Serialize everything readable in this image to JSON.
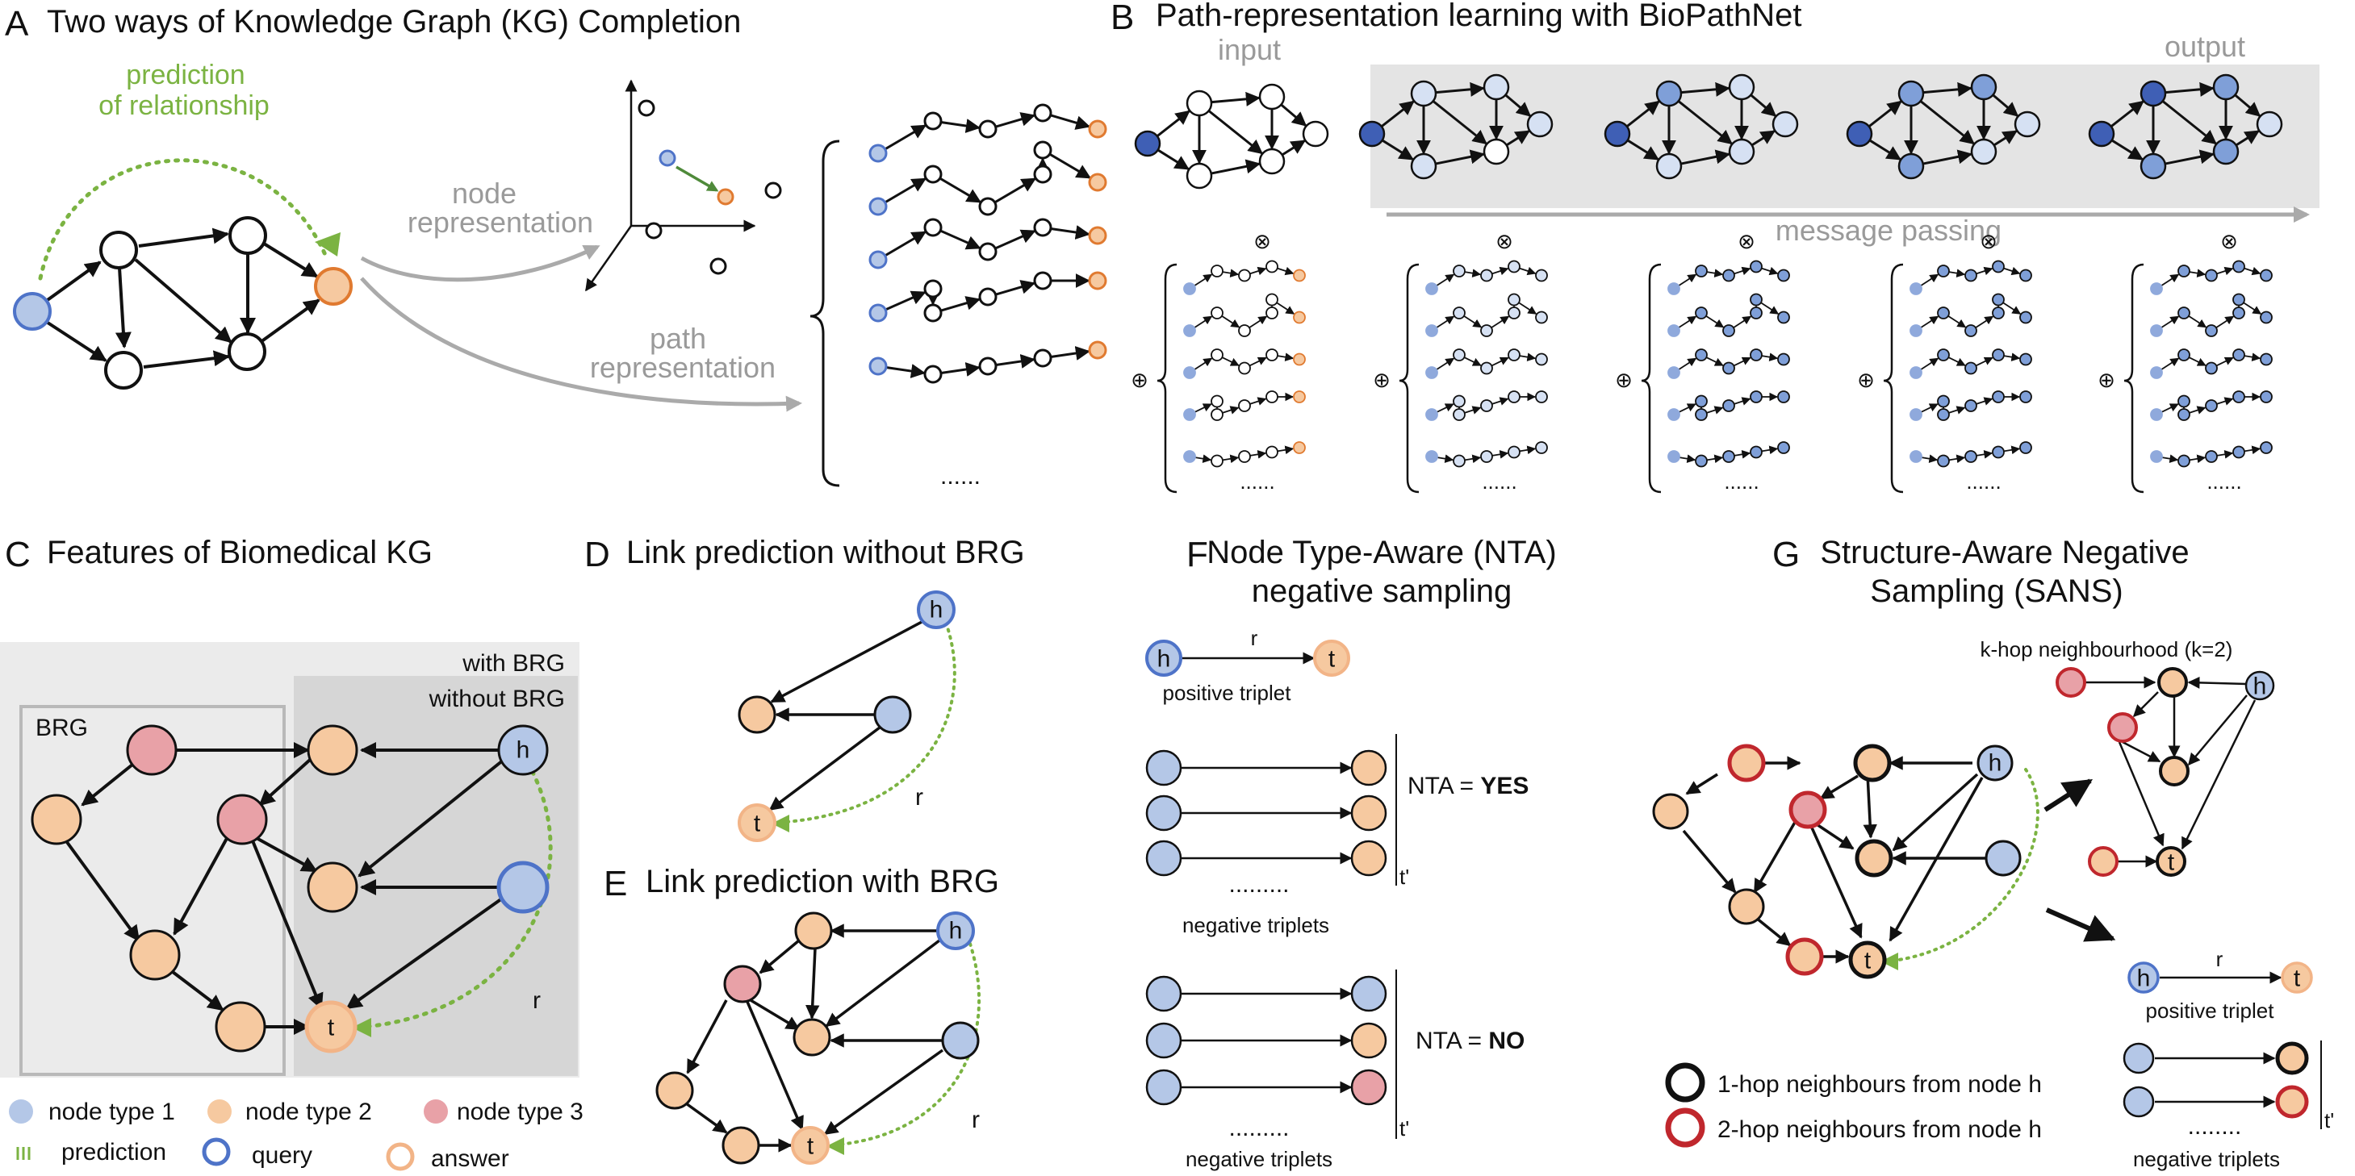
{
  "panel_a": {
    "letter": "A",
    "title": "Two ways of Knowledge Graph (KG) Completion",
    "prediction_line1": "prediction",
    "prediction_line2": "of relationship",
    "node_rep_line1": "node",
    "node_rep_line2": "representation",
    "path_rep_line1": "path",
    "path_rep_line2": "representation",
    "ellipsis": "......"
  },
  "panel_b": {
    "letter": "B",
    "title": "Path-representation learning with BioPathNet",
    "input_label": "input",
    "output_label": "output",
    "message_passing": "message passing",
    "otimes": "⊗",
    "oplus": "⊕",
    "ellipsis": "......"
  },
  "panel_c": {
    "letter": "C",
    "title": "Features of Biomedical KG",
    "with_brg": "with BRG",
    "without_brg": "without BRG",
    "brg": "BRG",
    "h": "h",
    "t": "t",
    "r": "r"
  },
  "panel_d": {
    "letter": "D",
    "title": "Link prediction without BRG",
    "h": "h",
    "t": "t",
    "r": "r"
  },
  "panel_e": {
    "letter": "E",
    "title": "Link prediction with BRG",
    "h": "h",
    "t": "t",
    "r": "r"
  },
  "panel_f": {
    "letter": "F",
    "title_line1": "Node Type-Aware (NTA)",
    "title_line2": "negative sampling",
    "h": "h",
    "t": "t",
    "r": "r",
    "positive_triplet": "positive triplet",
    "negative_triplets": "negative triplets",
    "nta_yes_prefix": "NTA = ",
    "nta_yes": "YES",
    "nta_no_prefix": "NTA = ",
    "nta_no": "NO",
    "t_prime": "t'",
    "dots": "........."
  },
  "panel_g": {
    "letter": "G",
    "title_line1": "Structure-Aware Negative",
    "title_line2": "Sampling (SANS)",
    "khop": "k-hop neighbourhood (k=2)",
    "h": "h",
    "t": "t",
    "r": "r",
    "positive_triplet": "positive triplet",
    "negative_triplets": "negative triplets",
    "one_hop": "1-hop neighbours from node h",
    "two_hop": "2-hop neighbours from node h",
    "t_prime": "t'",
    "dots": "........"
  },
  "legend": {
    "node_type_1": "node type 1",
    "node_type_2": "node type 2",
    "node_type_3": "node type 3",
    "prediction": "prediction",
    "query": "query",
    "answer": "answer"
  },
  "colors": {
    "node_type_1": "#b4c7e7",
    "node_type_2": "#f6c9a0",
    "node_type_3": "#e8a1a7",
    "query_ring": "#4e73c8",
    "answer_ring": "#f2b487",
    "prediction": "#7bb342",
    "one_hop_ring": "#111111",
    "two_hop_ring": "#c0272d",
    "dark_blue": "#3f5fb5",
    "mid_blue": "#7f9fd8",
    "pale_blue": "#d6e1f3"
  }
}
